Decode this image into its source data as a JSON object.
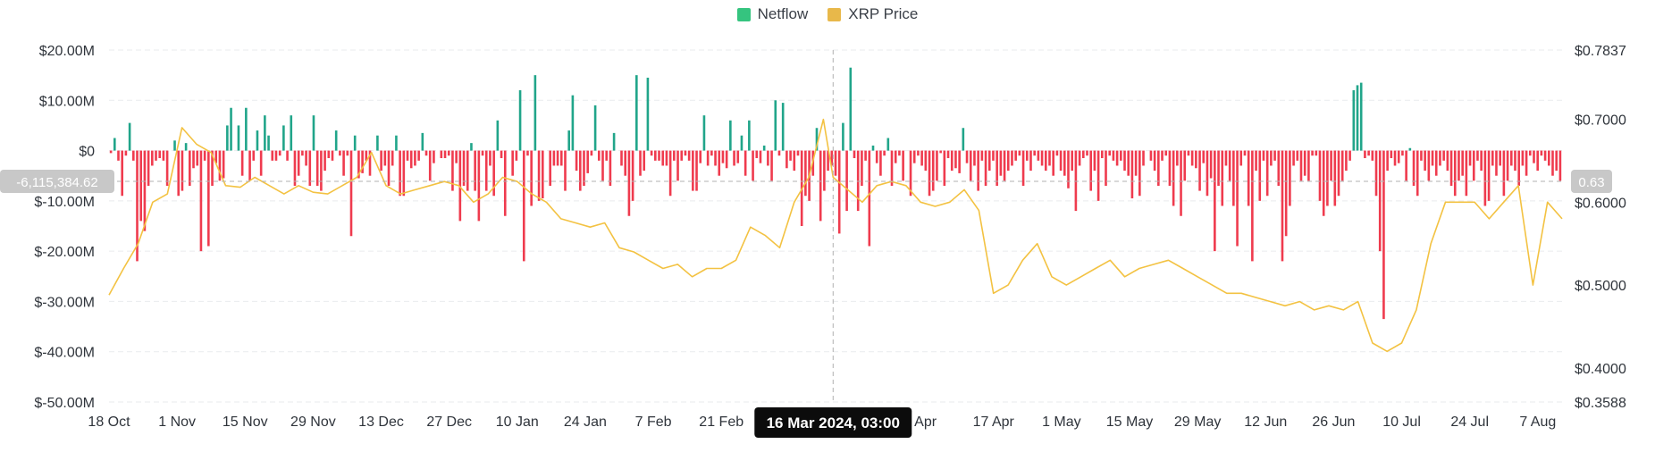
{
  "legend": {
    "netflow_label": "Netflow",
    "price_label": "XRP Price"
  },
  "colors": {
    "positive": "#21a58a",
    "negative": "#ef3b4e",
    "price_line": "#f3c242",
    "legend_netflow": "#35c47f",
    "legend_price": "#e8b84a",
    "badge": "#c8c8c8",
    "tooltip_bg": "#0c0c0c"
  },
  "crosshair": {
    "x_label": "16 Mar 2024, 03:00",
    "y_left_label": "-6,115,384.62",
    "y_right_label": "0.63",
    "netflow_value": -6115384.62,
    "date_index": 149
  },
  "chart_data": {
    "type": "bar",
    "secondary_type": "line",
    "left_axis": {
      "ticks": [
        "$20.00M",
        "$10.00M",
        "$0",
        "$-10.00M",
        "$-20.00M",
        "$-30.00M",
        "$-40.00M",
        "$-50.00M"
      ],
      "tick_values": [
        20,
        10,
        0,
        -10,
        -20,
        -30,
        -40,
        -50
      ],
      "range": [
        -50,
        20
      ],
      "unit": "USD millions"
    },
    "right_axis": {
      "ticks": [
        "$0.7837",
        "$0.7000",
        "$0.6000",
        "$0.5000",
        "$0.4000",
        "$0.3588"
      ],
      "tick_values": [
        0.7837,
        0.7,
        0.6,
        0.5,
        0.4,
        0.3588
      ],
      "range": [
        0.3588,
        0.7837
      ]
    },
    "x_axis": {
      "labels": [
        "18 Oct",
        "1 Nov",
        "15 Nov",
        "29 Nov",
        "13 Dec",
        "27 Dec",
        "10 Jan",
        "24 Jan",
        "7 Feb",
        "21 Feb",
        "",
        "Apr",
        "17 Apr",
        "1 May",
        "15 May",
        "29 May",
        "12 Jun",
        "26 Jun",
        "10 Jul",
        "24 Jul",
        "7 Aug"
      ],
      "label_day_index": [
        0,
        14,
        28,
        42,
        56,
        70,
        84,
        98,
        112,
        126,
        149,
        168,
        182,
        196,
        210,
        224,
        238,
        252,
        266,
        280,
        294
      ],
      "start_date": "18 Oct 2023",
      "days": 300
    },
    "grid": true,
    "legend_position": "top-center",
    "series": [
      {
        "name": "Netflow",
        "kind": "bar",
        "axis": "left",
        "unit": "USD millions",
        "values": [
          -0.5,
          2.5,
          -2,
          -9,
          -1,
          5.5,
          -2,
          -22,
          -14,
          -16,
          -7,
          -3,
          -2,
          -1.5,
          -2,
          -7,
          0,
          2,
          -9,
          -8,
          1.5,
          -7,
          -3.5,
          -3,
          -20,
          -2,
          -19,
          -7,
          -2.5,
          -6,
          -5.5,
          5,
          8.5,
          0,
          5,
          -5,
          8.5,
          -6,
          -2,
          4,
          -5,
          7,
          3,
          -2,
          -2,
          -1,
          5,
          -2,
          7,
          -7,
          -5,
          -1,
          -3,
          -7,
          7,
          -7,
          -8,
          -4,
          -1.5,
          -2,
          4,
          -1,
          -5,
          -1,
          -17,
          3,
          -5.5,
          -4.5,
          -2,
          -5,
          0,
          3,
          -4,
          -3,
          -7,
          -3,
          3,
          -9,
          -9,
          -2,
          -3.5,
          -3,
          -2,
          3.5,
          -1,
          -6,
          -2.5,
          0,
          -1.5,
          -1.5,
          -1,
          -8,
          -2.5,
          -14,
          -7,
          -8,
          1.5,
          -8,
          -14,
          -1,
          -8,
          -3,
          -9,
          6,
          -1.5,
          -13,
          0,
          -5,
          -2,
          12,
          -22,
          -1,
          -11,
          15,
          -10,
          -9.5,
          0,
          -7,
          -3,
          -3,
          -3,
          -8,
          4,
          11,
          -4,
          -8,
          -7,
          -4.5,
          -1,
          9,
          -2,
          -6,
          -2,
          -7,
          3.5,
          0,
          -3,
          -5,
          -13,
          -10,
          15,
          -5,
          -4,
          14.5,
          -1,
          -2,
          -2,
          -3,
          -3,
          -9,
          -2,
          -6,
          -2,
          -1,
          -2,
          -8,
          -8,
          -2.5,
          7,
          -3,
          -1,
          -3,
          -5,
          -2.5,
          -3.5,
          6,
          -3,
          -2.5,
          3,
          -5,
          6,
          -6,
          -1.5,
          -2.5,
          1,
          -3,
          -6,
          10,
          -1,
          9.5,
          -3.5,
          -2,
          -4,
          -1,
          -15,
          -9,
          -10,
          -5,
          4.5,
          -14,
          -8,
          -4,
          -3,
          -5,
          -16.5,
          5.5,
          -12,
          16.5,
          -1.5,
          -12,
          -7,
          -2,
          -19,
          1,
          -2.5,
          -5,
          -1,
          2.5,
          -7,
          -2.5,
          -1,
          -6,
          0,
          -9,
          -2.5,
          -1,
          -3,
          -4,
          -9,
          -8,
          -6,
          -0.5,
          -7,
          -1.5,
          -4,
          -3.5,
          -4.5,
          4.5,
          -2.5,
          -6,
          -3,
          -8,
          -2,
          -7,
          -4,
          -2,
          -7,
          -5,
          -6,
          -4,
          -3,
          -2,
          -1,
          -7,
          -2,
          -4,
          -1,
          -2,
          -3,
          -4,
          -3,
          -5,
          -1,
          -4,
          -5,
          -7.5,
          -4,
          -12,
          -3,
          -1.5,
          -1,
          -8,
          -4,
          -10,
          -1.5,
          -7,
          -1,
          -2,
          -3,
          -2,
          -4,
          -5,
          -9.5,
          -5,
          -9,
          -3,
          0,
          -2,
          -4,
          -7,
          -2,
          -1,
          -7,
          -11,
          -3,
          -13,
          -6,
          -1,
          -3,
          -3.5,
          -8,
          -2.5,
          -9,
          -5.5,
          -20,
          -7,
          -11,
          -3,
          -6,
          -11,
          -19,
          -3,
          -1,
          -11,
          -22,
          -4,
          -10,
          -2,
          -9,
          -3,
          -2,
          -7,
          -22,
          -17,
          -11,
          -3,
          -2,
          -6,
          -5,
          -6,
          -1,
          -1,
          -10,
          -13,
          -11,
          -6,
          -11,
          -9,
          -6,
          -4,
          -2,
          12,
          13,
          13.5,
          -1.5,
          -1,
          -2,
          -9,
          -20,
          -33.5,
          -4,
          -1.5,
          -3,
          -2.5,
          -1,
          -6,
          0.5,
          -7,
          -9,
          -2,
          -4,
          -6,
          -3,
          -5,
          -3,
          -2,
          -4,
          -7,
          -9,
          -6,
          -5,
          -9,
          -3,
          -6,
          -2,
          -4,
          -11,
          -10,
          -3,
          -5,
          -3,
          -9,
          -6,
          -3,
          -4,
          -7,
          -3,
          -5,
          -1,
          -2.5,
          -4,
          -1,
          -2,
          -3,
          -5,
          -4,
          -6
        ]
      },
      {
        "name": "XRP Price",
        "kind": "line",
        "axis": "right",
        "x_day": [
          0,
          3,
          6,
          9,
          12,
          15,
          18,
          21,
          24,
          27,
          30,
          33,
          36,
          39,
          42,
          45,
          48,
          51,
          54,
          57,
          60,
          63,
          66,
          69,
          72,
          75,
          78,
          81,
          84,
          87,
          90,
          93,
          96,
          99,
          102,
          105,
          108,
          111,
          114,
          117,
          120,
          123,
          126,
          129,
          132,
          135,
          138,
          141,
          144,
          147,
          149,
          152,
          155,
          158,
          161,
          164,
          167,
          170,
          173,
          176,
          179,
          182,
          185,
          188,
          191,
          194,
          197,
          200,
          203,
          206,
          209,
          212,
          215,
          218,
          221,
          224,
          227,
          230,
          233,
          236,
          239,
          242,
          245,
          248,
          251,
          254,
          257,
          260,
          263,
          266,
          269,
          272,
          275,
          278,
          281,
          284,
          287,
          290,
          293,
          296,
          299
        ],
        "values": [
          0.488,
          0.52,
          0.55,
          0.6,
          0.61,
          0.69,
          0.67,
          0.66,
          0.62,
          0.618,
          0.63,
          0.62,
          0.61,
          0.62,
          0.612,
          0.61,
          0.62,
          0.63,
          0.66,
          0.62,
          0.61,
          0.615,
          0.62,
          0.625,
          0.62,
          0.6,
          0.61,
          0.63,
          0.625,
          0.61,
          0.6,
          0.58,
          0.575,
          0.57,
          0.575,
          0.545,
          0.54,
          0.53,
          0.52,
          0.525,
          0.51,
          0.52,
          0.52,
          0.53,
          0.57,
          0.56,
          0.545,
          0.6,
          0.63,
          0.7,
          0.63,
          0.615,
          0.6,
          0.62,
          0.625,
          0.62,
          0.6,
          0.595,
          0.6,
          0.615,
          0.59,
          0.49,
          0.5,
          0.53,
          0.55,
          0.51,
          0.5,
          0.51,
          0.52,
          0.53,
          0.51,
          0.52,
          0.525,
          0.53,
          0.52,
          0.51,
          0.5,
          0.49,
          0.49,
          0.485,
          0.48,
          0.475,
          0.48,
          0.47,
          0.475,
          0.47,
          0.48,
          0.43,
          0.42,
          0.43,
          0.47,
          0.55,
          0.6,
          0.6,
          0.6,
          0.58,
          0.6,
          0.62,
          0.5,
          0.6,
          0.58
        ]
      }
    ]
  }
}
